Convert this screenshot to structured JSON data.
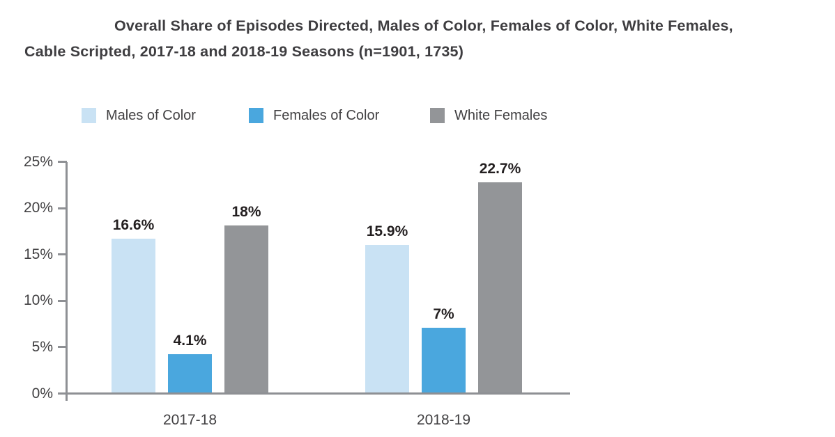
{
  "title": {
    "line1": "Overall Share of Episodes Directed, Males of Color, Females of Color, White Females,",
    "line2": "Cable Scripted, 2017-18 and 2018-19 Seasons (n=1901, 1735)"
  },
  "axis": {
    "yticks": [
      {
        "value": 25,
        "label": "25%"
      },
      {
        "value": 20,
        "label": "20%"
      },
      {
        "value": 15,
        "label": "15%"
      },
      {
        "value": 10,
        "label": "10%"
      },
      {
        "value": 5,
        "label": "5%"
      },
      {
        "value": 0,
        "label": "0%"
      }
    ]
  },
  "chart_data": {
    "type": "bar",
    "title": "Overall Share of Episodes Directed, Males of Color, Females of Color, White Females, Cable Scripted, 2017-18 and 2018-19 Seasons (n=1901, 1735)",
    "categories": [
      "2017-18",
      "2018-19"
    ],
    "series": [
      {
        "name": "Males of Color",
        "color": "#C9E2F4",
        "values": [
          16.6,
          15.9
        ],
        "labels": [
          "16.6%",
          "15.9%"
        ]
      },
      {
        "name": "Females of Color",
        "color": "#4AA7DE",
        "values": [
          4.1,
          7
        ],
        "labels": [
          "4.1%",
          "7%"
        ]
      },
      {
        "name": "White Females",
        "color": "#939598",
        "values": [
          18,
          22.7
        ],
        "labels": [
          "18%",
          "22.7%"
        ]
      }
    ],
    "xlabel": "",
    "ylabel": "",
    "ylim": [
      0,
      25
    ],
    "ytick_labels": [
      "0%",
      "5%",
      "10%",
      "15%",
      "20%",
      "25%"
    ],
    "grid": false,
    "legend_position": "top",
    "value_labels_shown": true,
    "colors": {
      "axis": "#8E9094",
      "title_text": "#3E3D40",
      "axis_text": "#414042",
      "value_text": "#231F20",
      "background": "#FFFFFF"
    }
  }
}
